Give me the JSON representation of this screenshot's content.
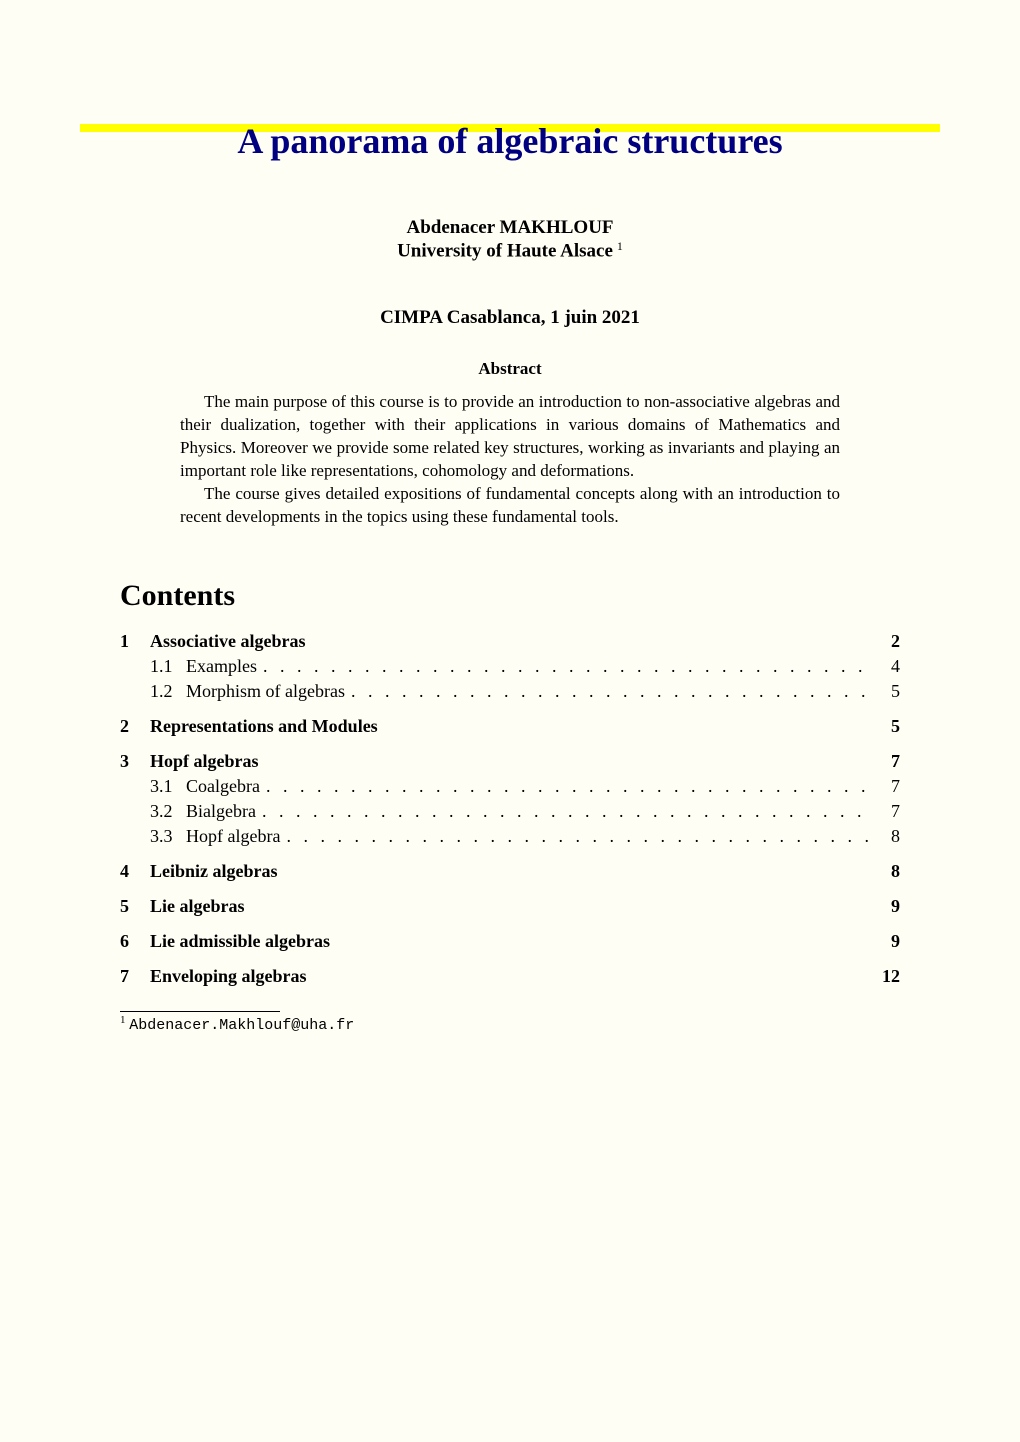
{
  "title": "A panorama of algebraic structures",
  "author": {
    "name": "Abdenacer MAKHLOUF",
    "affiliation": "University of Haute Alsace",
    "footnote_mark": "1"
  },
  "event": "CIMPA Casablanca, 1 juin 2021",
  "abstract": {
    "heading": "Abstract",
    "paragraphs": [
      "The main purpose of this course is to provide an introduction to non-associative algebras and their dualization, together with their applications in various domains of Mathematics and Physics. Moreover we provide some related key structures, working as invariants and playing an important role like representations, cohomology and deformations.",
      "The course gives detailed expositions of fundamental concepts along with an introduction to recent developments in the topics using these fundamental tools."
    ]
  },
  "contents": {
    "heading": "Contents",
    "sections": [
      {
        "num": "1",
        "label": "Associative algebras",
        "page": "2",
        "subs": [
          {
            "num": "1.1",
            "label": "Examples",
            "page": "4"
          },
          {
            "num": "1.2",
            "label": "Morphism of algebras",
            "page": "5"
          }
        ]
      },
      {
        "num": "2",
        "label": "Representations and Modules",
        "page": "5",
        "subs": []
      },
      {
        "num": "3",
        "label": "Hopf algebras",
        "page": "7",
        "subs": [
          {
            "num": "3.1",
            "label": "Coalgebra",
            "page": "7"
          },
          {
            "num": "3.2",
            "label": "Bialgebra",
            "page": "7"
          },
          {
            "num": "3.3",
            "label": "Hopf algebra",
            "page": "8"
          }
        ]
      },
      {
        "num": "4",
        "label": "Leibniz algebras",
        "page": "8",
        "subs": []
      },
      {
        "num": "5",
        "label": "Lie algebras",
        "page": "9",
        "subs": []
      },
      {
        "num": "6",
        "label": "Lie admissible algebras",
        "page": "9",
        "subs": []
      },
      {
        "num": "7",
        "label": "Enveloping algebras",
        "page": "12",
        "subs": []
      }
    ]
  },
  "footnote": {
    "mark": "1",
    "text": "Abdenacer.Makhlouf@uha.fr"
  },
  "colors": {
    "background": "#fffef5",
    "title_color": "#000080",
    "highlight": "#ffff00",
    "text": "#000000"
  },
  "typography": {
    "title_fontsize": 36,
    "body_fontsize": 18,
    "abstract_fontsize": 17,
    "contents_heading_fontsize": 30,
    "font_family": "Times New Roman, serif",
    "mono_family": "Courier New, monospace"
  }
}
